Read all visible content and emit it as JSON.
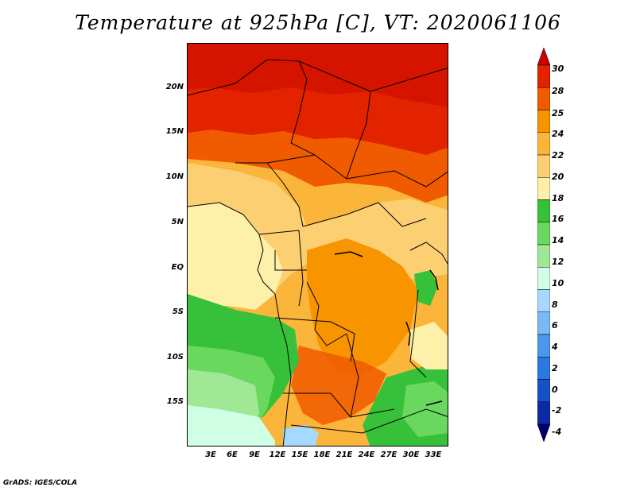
{
  "title": "Temperature at 925hPa [C], VT: 2020061106",
  "credit": "GrADS: IGES/COLA",
  "map": {
    "lat_labels": [
      "20N",
      "15N",
      "10N",
      "5N",
      "EQ",
      "5S",
      "10S",
      "15S"
    ],
    "lon_labels": [
      "3E",
      "6E",
      "9E",
      "12E",
      "15E",
      "18E",
      "21E",
      "24E",
      "27E",
      "30E",
      "33E"
    ]
  },
  "legend": {
    "labels": [
      "30",
      "28",
      "25",
      "24",
      "22",
      "20",
      "18",
      "16",
      "14",
      "12",
      "10",
      "8",
      "6",
      "4",
      "2",
      "0",
      "-2",
      "-4"
    ],
    "colors": [
      "#cd0000",
      "#e32200",
      "#f05a00",
      "#f79400",
      "#fab53a",
      "#fcd072",
      "#fdf0a8",
      "#37c13a",
      "#6ad85e",
      "#a0e896",
      "#cfffe5",
      "#a5d9ff",
      "#78b9f6",
      "#4c96ec",
      "#2c78df",
      "#1552c9",
      "#0a2aa8",
      "#000070"
    ]
  }
}
